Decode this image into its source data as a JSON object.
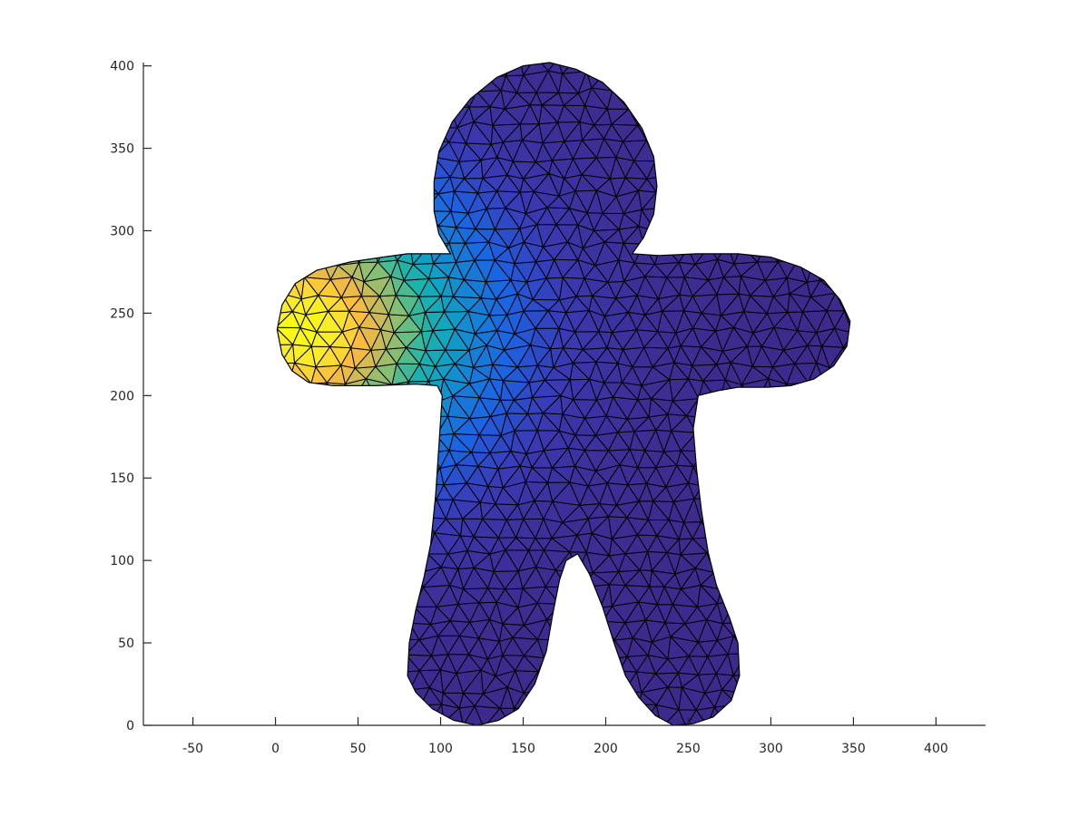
{
  "chart_data": {
    "type": "heatmap",
    "title": "",
    "xlabel": "",
    "ylabel": "",
    "xlim": [
      -80,
      430
    ],
    "ylim": [
      0,
      402
    ],
    "x_ticks": [
      -50,
      0,
      50,
      100,
      150,
      200,
      250,
      300,
      350,
      400
    ],
    "y_ticks": [
      0,
      50,
      100,
      150,
      200,
      250,
      300,
      350,
      400
    ],
    "x_tick_labels": [
      "-50",
      "0",
      "50",
      "100",
      "150",
      "200",
      "250",
      "300",
      "350",
      "400"
    ],
    "y_tick_labels": [
      "0",
      "50",
      "100",
      "150",
      "200",
      "250",
      "300",
      "350",
      "400"
    ],
    "grid": false,
    "mesh_edge_color": "#000000",
    "colormap": [
      "#3e2a8c",
      "#3a3ab5",
      "#1b63e3",
      "#1581d6",
      "#0fa3c4",
      "#1fb5a8",
      "#7cbf78",
      "#c4bb5a",
      "#fcbb3e",
      "#f9e830",
      "#f9fb14"
    ],
    "hot_spot": {
      "x": 15,
      "y": 240
    },
    "outline": [
      [
        122,
        0
      ],
      [
        108,
        3
      ],
      [
        95,
        10
      ],
      [
        85,
        20
      ],
      [
        80,
        30
      ],
      [
        81,
        50
      ],
      [
        85,
        70
      ],
      [
        90,
        90
      ],
      [
        94,
        110
      ],
      [
        97,
        140
      ],
      [
        99,
        170
      ],
      [
        101,
        200
      ],
      [
        98,
        206
      ],
      [
        85,
        207
      ],
      [
        60,
        206
      ],
      [
        35,
        206
      ],
      [
        20,
        208
      ],
      [
        10,
        215
      ],
      [
        4,
        225
      ],
      [
        1,
        240
      ],
      [
        4,
        255
      ],
      [
        12,
        268
      ],
      [
        25,
        276
      ],
      [
        45,
        281
      ],
      [
        65,
        284
      ],
      [
        80,
        286
      ],
      [
        97,
        286
      ],
      [
        106,
        286
      ],
      [
        99,
        298
      ],
      [
        96,
        312
      ],
      [
        96,
        330
      ],
      [
        99,
        348
      ],
      [
        107,
        366
      ],
      [
        118,
        380
      ],
      [
        134,
        393
      ],
      [
        150,
        400
      ],
      [
        166,
        402
      ],
      [
        182,
        398
      ],
      [
        198,
        390
      ],
      [
        211,
        378
      ],
      [
        222,
        362
      ],
      [
        229,
        345
      ],
      [
        231,
        327
      ],
      [
        229,
        310
      ],
      [
        223,
        296
      ],
      [
        216,
        286
      ],
      [
        232,
        285
      ],
      [
        255,
        286
      ],
      [
        280,
        286
      ],
      [
        300,
        284
      ],
      [
        318,
        278
      ],
      [
        332,
        270
      ],
      [
        342,
        258
      ],
      [
        348,
        245
      ],
      [
        346,
        230
      ],
      [
        338,
        218
      ],
      [
        326,
        210
      ],
      [
        312,
        206
      ],
      [
        298,
        205
      ],
      [
        280,
        205
      ],
      [
        268,
        203
      ],
      [
        256,
        200
      ],
      [
        253,
        180
      ],
      [
        255,
        155
      ],
      [
        258,
        130
      ],
      [
        262,
        105
      ],
      [
        267,
        85
      ],
      [
        275,
        65
      ],
      [
        280,
        50
      ],
      [
        281,
        30
      ],
      [
        276,
        15
      ],
      [
        265,
        5
      ],
      [
        253,
        1
      ],
      [
        241,
        0
      ],
      [
        230,
        6
      ],
      [
        220,
        17
      ],
      [
        212,
        30
      ],
      [
        205,
        50
      ],
      [
        198,
        72
      ],
      [
        190,
        92
      ],
      [
        183,
        104
      ],
      [
        176,
        100
      ],
      [
        172,
        88
      ],
      [
        168,
        68
      ],
      [
        164,
        45
      ],
      [
        157,
        25
      ],
      [
        147,
        10
      ],
      [
        135,
        3
      ]
    ]
  }
}
